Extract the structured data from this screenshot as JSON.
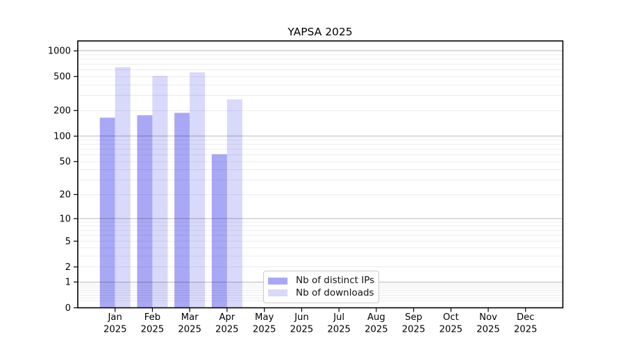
{
  "chart_data": {
    "type": "bar",
    "title": "YAPSA 2025",
    "x_ticks": [
      "Jan",
      "Feb",
      "Mar",
      "Apr",
      "May",
      "Jun",
      "Jul",
      "Aug",
      "Sep",
      "Oct",
      "Nov",
      "Dec"
    ],
    "x_tick_year": "2025",
    "y_ticks": [
      0,
      1,
      2,
      5,
      10,
      20,
      50,
      100,
      200,
      500,
      1000
    ],
    "y_scale": "log10(1+value)",
    "ylim": [
      0,
      1300
    ],
    "grid": "horizontal log major and minor gridlines",
    "series": [
      {
        "name": "Nb of distinct IPs",
        "color": "#a8a8f6",
        "values": [
          165,
          176,
          188,
          61,
          0,
          0,
          0,
          0,
          0,
          0,
          0,
          0
        ]
      },
      {
        "name": "Nb of downloads",
        "color": "#d9d9fb",
        "values": [
          645,
          510,
          560,
          270,
          0,
          0,
          0,
          0,
          0,
          0,
          0,
          0
        ]
      }
    ],
    "legend": {
      "position": "inside-bottom-center"
    },
    "colors": {
      "axis": "#000000",
      "grid_major": "rgba(0,0,0,0.28)",
      "grid_minor": "rgba(0,0,0,0.075)",
      "background": "#ffffff"
    }
  }
}
